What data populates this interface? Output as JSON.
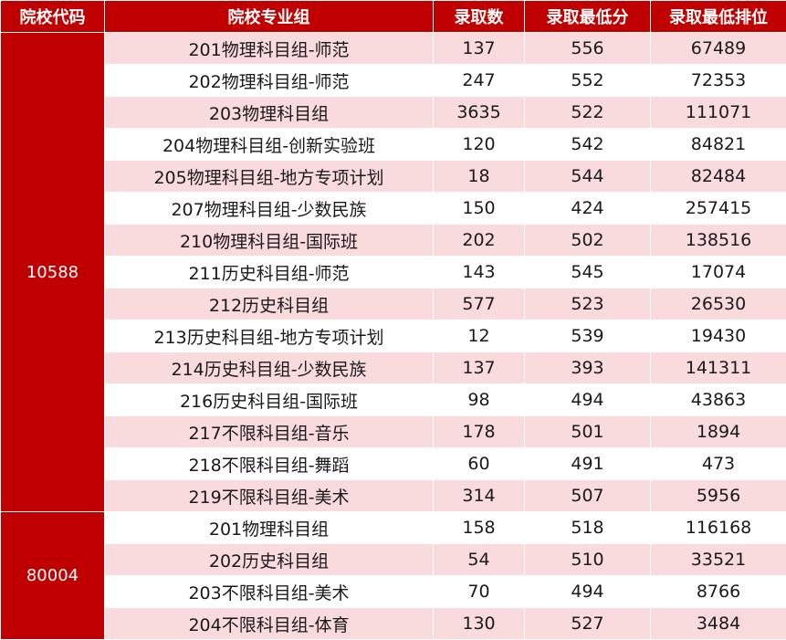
{
  "headers": [
    "院校代码",
    "院校专业组",
    "录取数",
    "录取最低分",
    "录取最低排位"
  ],
  "colors": {
    "header_bg": "#c00000",
    "row_alt_bg": "#f9dadd",
    "row_bg": "#ffffff"
  },
  "schools": [
    {
      "code": "10588",
      "rows": [
        {
          "group": "201物理科目组-师范",
          "count": "137",
          "min_score": "556",
          "min_rank": "67489"
        },
        {
          "group": "202物理科目组-师范",
          "count": "247",
          "min_score": "552",
          "min_rank": "72353"
        },
        {
          "group": "203物理科目组",
          "count": "3635",
          "min_score": "522",
          "min_rank": "111071"
        },
        {
          "group": "204物理科目组-创新实验班",
          "count": "120",
          "min_score": "542",
          "min_rank": "84821"
        },
        {
          "group": "205物理科目组-地方专项计划",
          "count": "18",
          "min_score": "544",
          "min_rank": "82484"
        },
        {
          "group": "207物理科目组-少数民族",
          "count": "150",
          "min_score": "424",
          "min_rank": "257415"
        },
        {
          "group": "210物理科目组-国际班",
          "count": "202",
          "min_score": "502",
          "min_rank": "138516"
        },
        {
          "group": "211历史科目组-师范",
          "count": "143",
          "min_score": "545",
          "min_rank": "17074"
        },
        {
          "group": "212历史科目组",
          "count": "577",
          "min_score": "523",
          "min_rank": "26530"
        },
        {
          "group": "213历史科目组-地方专项计划",
          "count": "12",
          "min_score": "539",
          "min_rank": "19430"
        },
        {
          "group": "214历史科目组-少数民族",
          "count": "137",
          "min_score": "393",
          "min_rank": "141311"
        },
        {
          "group": "216历史科目组-国际班",
          "count": "98",
          "min_score": "494",
          "min_rank": "43863"
        },
        {
          "group": "217不限科目组-音乐",
          "count": "178",
          "min_score": "501",
          "min_rank": "1894"
        },
        {
          "group": "218不限科目组-舞蹈",
          "count": "60",
          "min_score": "491",
          "min_rank": "473"
        },
        {
          "group": "219不限科目组-美术",
          "count": "314",
          "min_score": "507",
          "min_rank": "5956"
        }
      ]
    },
    {
      "code": "80004",
      "rows": [
        {
          "group": "201物理科目组",
          "count": "158",
          "min_score": "518",
          "min_rank": "116168"
        },
        {
          "group": "202历史科目组",
          "count": "54",
          "min_score": "510",
          "min_rank": "33521"
        },
        {
          "group": "203不限科目组-美术",
          "count": "70",
          "min_score": "494",
          "min_rank": "8766"
        },
        {
          "group": "204不限科目组-体育",
          "count": "130",
          "min_score": "527",
          "min_rank": "3484"
        }
      ]
    }
  ]
}
